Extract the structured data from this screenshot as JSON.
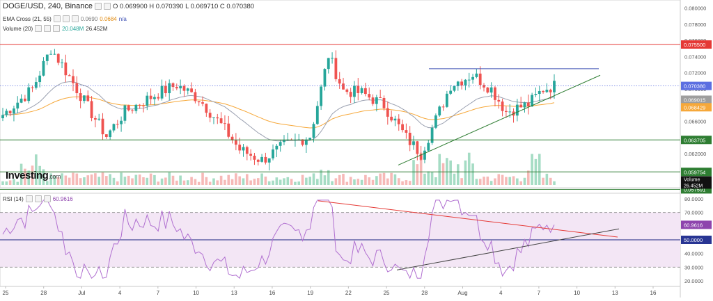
{
  "header": {
    "symbol": "DOGE/USD, 240, Binance",
    "ohlc": "O 0.069900  H 0.070390  L 0.069710  C 0.070380",
    "ema_label": "EMA Cross (21, 55)",
    "ema_val1": "0.0690",
    "ema_val2": "0.0684",
    "ema_val3": "n/a",
    "volume_label": "Volume (20)",
    "volume_val1": "20.048M",
    "volume_val2": "26.452M",
    "rsi_label": "RSI (14)",
    "rsi_val": "60.9616"
  },
  "logo": {
    "text": "Investing",
    "suffix": ".com"
  },
  "colors": {
    "up": "#26a69a",
    "down": "#ef5350",
    "ema_fast": "#9aa0b0",
    "ema_slow": "#f6a83a",
    "resistance": "#e53935",
    "blue_line": "#3f51b5",
    "support_green": "#2e7d32",
    "rsi_line": "#b06fd0",
    "rsi_band": "#f3e6f5"
  },
  "chart_data": [
    {
      "type": "candlestick",
      "title": "DOGE/USD, 240, Binance",
      "ylim": [
        0.0578,
        0.081
      ],
      "y_ticks": [
        "0.080000",
        "0.078000",
        "0.076000",
        "0.074000",
        "0.072000",
        "0.070000",
        "0.068000",
        "0.066000",
        "0.064000",
        "0.062000",
        "0.060000",
        "0.058000"
      ],
      "x_tick_labels": [
        "25",
        "28",
        "Jul",
        "4",
        "7",
        "10",
        "13",
        "16",
        "19",
        "22",
        "25",
        "28",
        "Aug",
        "4",
        "7",
        "10",
        "13",
        "16"
      ],
      "horizontal_levels": [
        {
          "value": 0.0755,
          "label": "0.075500",
          "color": "#e53935"
        },
        {
          "value": 0.063705,
          "label": "0.063705",
          "color": "#2e7d32"
        },
        {
          "value": 0.059754,
          "label": "0.059754",
          "color": "#2e7d32"
        },
        {
          "value": 0.057591,
          "label": "0.057591",
          "color": "#2e7d32"
        }
      ],
      "price_markers": [
        {
          "value": 0.07038,
          "label": "0.070380",
          "color": "#5b6ee1"
        },
        {
          "value": 0.069015,
          "label": "0.069015",
          "color": "#9e9e9e"
        },
        {
          "value": 0.068429,
          "label": "0.068429",
          "color": "#f6a83a"
        }
      ],
      "volume_markers": [
        {
          "label": "Volume",
          "color": "#111111"
        },
        {
          "label": "26.452M",
          "color": "#111111"
        }
      ]
    },
    {
      "type": "line",
      "title": "RSI (14)",
      "ylim": [
        16,
        84
      ],
      "y_ticks": [
        "80.0000",
        "70.0000",
        "60.0000",
        "50.0000",
        "40.0000",
        "30.0000",
        "20.0000"
      ],
      "band": [
        30,
        70
      ],
      "midline": 50,
      "markers": [
        {
          "value": 60.9616,
          "label": "60.9616",
          "color": "#8e44ad"
        },
        {
          "value": 50.0,
          "label": "50.0000",
          "color": "#283593"
        }
      ]
    }
  ]
}
